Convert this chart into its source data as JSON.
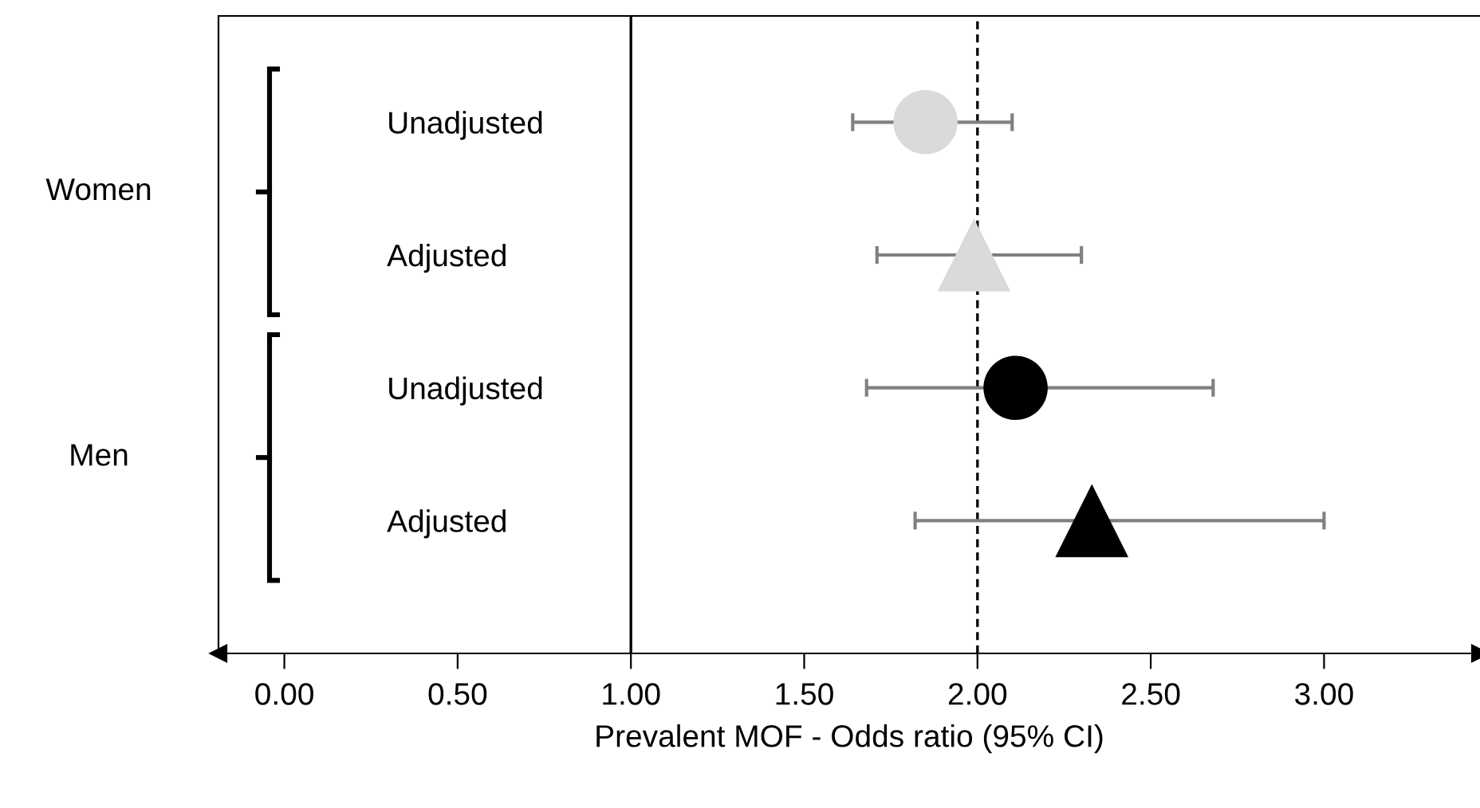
{
  "chart_data": {
    "type": "scatter",
    "orientation": "horizontal",
    "xlabel": "Prevalent MOF - Odds ratio (95% CI)",
    "categories": [
      "Unadjusted",
      "Adjusted",
      "Unadjusted",
      "Adjusted"
    ],
    "annotations": [
      "Women",
      "Men"
    ],
    "series": [
      {
        "marker": "circle",
        "colors": [
          "#d9dbdb",
          null,
          "#000000",
          null
        ],
        "values": [
          1.85,
          null,
          2.11,
          null
        ],
        "errors": [
          [
            1.64,
            2.1
          ],
          null,
          [
            1.68,
            2.68
          ],
          null
        ]
      },
      {
        "marker": "triangle",
        "colors": [
          null,
          "#d9dbdb",
          null,
          "#000000"
        ],
        "values": [
          null,
          1.99,
          null,
          2.33
        ],
        "errors": [
          null,
          [
            1.71,
            2.3
          ],
          null,
          [
            1.82,
            3.0
          ]
        ]
      }
    ],
    "xlim": [
      -0.19,
      3.45
    ],
    "xticks": [
      {
        "value": 0,
        "label": "0.00"
      },
      {
        "value": 0.5,
        "label": "0.50"
      },
      {
        "value": 1,
        "label": "1.00"
      },
      {
        "value": 1.5,
        "label": "1.50"
      },
      {
        "value": 2,
        "label": "2.00"
      },
      {
        "value": 2.5,
        "label": "2.50"
      },
      {
        "value": 3,
        "label": "3.00"
      }
    ],
    "ref_lines": [
      {
        "axis": "x",
        "value": 1,
        "color": "#000000",
        "line_style": "solid"
      },
      {
        "axis": "x",
        "value": 2,
        "color": "#000000",
        "line_style": "dashed"
      }
    ],
    "grid": false,
    "legend": false
  }
}
